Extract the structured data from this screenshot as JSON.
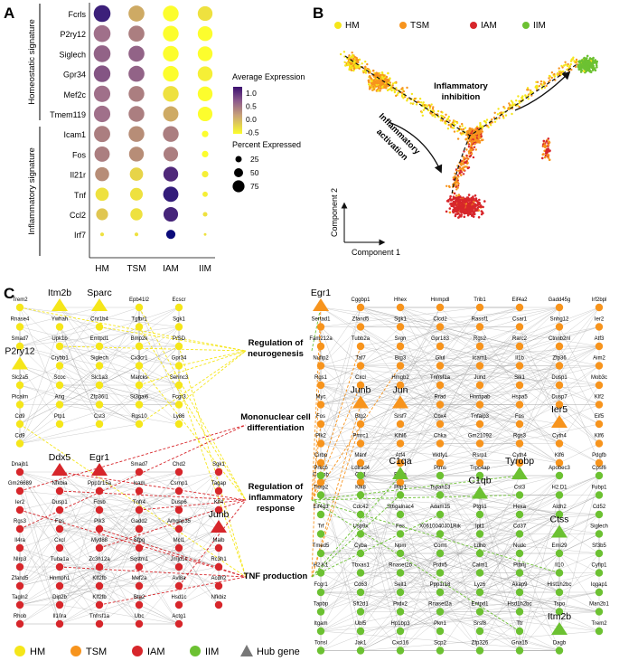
{
  "panel_labels": {
    "a": "A",
    "b": "B",
    "c": "C"
  },
  "colors": {
    "hm": "#f5e61a",
    "tsm": "#f7941d",
    "iam": "#d7262b",
    "iim": "#6cc132",
    "expr_high": "#3b0f70",
    "expr_mid": "#c7a079",
    "expr_low": "#fcfd2d"
  },
  "chart_data": {
    "type": "dotplot",
    "title": "",
    "columns": [
      "HM",
      "TSM",
      "IAM",
      "IIM"
    ],
    "genes": [
      "Fcrls",
      "P2ry12",
      "Siglech",
      "Gpr34",
      "Mef2c",
      "Tmem119",
      "Icam1",
      "Fos",
      "Il21r",
      "Tnf",
      "Ccl2",
      "Irf7"
    ],
    "groups": [
      {
        "label": "Homeostatic signature",
        "genes": [
          "Fcrls",
          "P2ry12",
          "Siglech",
          "Gpr34",
          "Mef2c",
          "Tmem119"
        ]
      },
      {
        "label": "Inflammatory signature",
        "genes": [
          "Icam1",
          "Fos",
          "Il21r",
          "Tnf",
          "Ccl2",
          "Irf7"
        ]
      }
    ],
    "avg_expression": [
      [
        1.3,
        0.1,
        -0.5,
        -0.3
      ],
      [
        0.5,
        0.4,
        -0.5,
        -0.5
      ],
      [
        0.6,
        0.6,
        -0.5,
        -0.5
      ],
      [
        0.7,
        0.6,
        -0.5,
        -0.4
      ],
      [
        0.5,
        0.4,
        -0.3,
        -0.5
      ],
      [
        0.5,
        0.4,
        0.1,
        -0.5
      ],
      [
        0.4,
        0.3,
        0.4,
        -0.5
      ],
      [
        0.4,
        0.3,
        0.4,
        -0.5
      ],
      [
        0.3,
        -0.2,
        1.1,
        -0.4
      ],
      [
        -0.3,
        -0.3,
        1.4,
        -0.4
      ],
      [
        -0.1,
        -0.3,
        1.2,
        -0.3
      ],
      [
        -0.3,
        -0.3,
        1.8,
        -0.3
      ]
    ],
    "pct_expressed": [
      [
        80,
        72,
        70,
        62
      ],
      [
        80,
        72,
        70,
        62
      ],
      [
        80,
        72,
        70,
        62
      ],
      [
        78,
        72,
        70,
        62
      ],
      [
        76,
        70,
        70,
        62
      ],
      [
        76,
        70,
        66,
        60
      ],
      [
        74,
        70,
        70,
        12
      ],
      [
        66,
        62,
        60,
        12
      ],
      [
        56,
        50,
        62,
        12
      ],
      [
        50,
        46,
        66,
        8
      ],
      [
        40,
        42,
        60,
        6
      ],
      [
        4,
        4,
        24,
        2
      ]
    ],
    "color_scale": {
      "title": "Average Expression",
      "ticks": [
        "1.0",
        "0.5",
        "0.0",
        "-0.5"
      ]
    },
    "size_scale": {
      "title": "Percent Expressed",
      "ticks": [
        "25",
        "50",
        "75"
      ]
    }
  },
  "panel_b": {
    "legend": [
      "HM",
      "TSM",
      "IAM",
      "IIM"
    ],
    "xlabel": "Component 1",
    "ylabel": "Component 2",
    "arrow_inhibition": [
      "Inflammatory",
      "inhibition"
    ],
    "arrow_activation": [
      "Inflammatory",
      "activation"
    ]
  },
  "panel_c": {
    "go_terms": [
      [
        "Regulation of",
        "neurogenesis"
      ],
      [
        "Mononuclear cell",
        "differentiation"
      ],
      [
        "Regulation of",
        "inflammatory",
        "response"
      ],
      [
        "TNF production"
      ]
    ],
    "legend": [
      "HM",
      "TSM",
      "IAM",
      "IIM",
      "Hub gene"
    ],
    "left_yellow": [
      [
        "Trem2",
        "Itm2b*",
        "Sparc*",
        "Epb41l2",
        "Ecscr"
      ],
      [
        "Rnase4",
        "Ywhah",
        "Cnr1b4",
        "Tgfbr1",
        "Sgk1"
      ],
      [
        "Smad7",
        "Upk1b",
        "Emtpd1",
        "Bmp2k",
        "P/SD"
      ],
      [
        "P2ry12*",
        "Crybb1",
        "Siglech",
        "Cx3cr1",
        "Gpr34"
      ],
      [
        "Slc2a5",
        "Scoc",
        "Slc1a3",
        "Marcks",
        "Serinc3"
      ],
      [
        "Picalm",
        "Ang",
        "Zfp36l1",
        "St3gal6",
        "Fcgr3"
      ],
      [
        "Cd9",
        "Ptp1",
        "Cst3",
        "Rgs10",
        "Ly86"
      ],
      [
        "Cd9"
      ]
    ],
    "left_red": [
      [
        "Dnajb1",
        "Ddx5*",
        "Egr1*",
        "Smad7",
        "Chd2",
        "Sgk1"
      ],
      [
        "Gm26689",
        "Nfkbia",
        "Ppp1r15a",
        "Icam",
        "Csrnp1",
        "Tagap"
      ],
      [
        "Ier2",
        "Dusp1",
        "Fosb",
        "Tnfr4",
        "Dusp6",
        "Klf4"
      ],
      [
        "Rgs3",
        "Fos",
        "Pik3",
        "Gadd2",
        "Arhgap35",
        "Junb*"
      ],
      [
        "Il4ra",
        "Cxcl",
        "Myd88",
        "Sfpq",
        "Mcl1",
        "Malb"
      ],
      [
        "Nlrp3",
        "Tuba1a",
        "Zc3h12a",
        "Sqstm1",
        "Jmjd1c",
        "Rc3h1"
      ],
      [
        "Zfand5",
        "Hnmph1",
        "Klf2fb",
        "Mef2a",
        "Avl8a",
        "Acdh2"
      ],
      [
        "Tagln2",
        "Dip2b",
        "Klf2fb",
        "Btg2",
        "Hsd1c",
        "Nfkbiz"
      ],
      [
        "Rhob",
        "Il10ra",
        "Tnfrsf1a",
        "Ubc",
        "Actg1"
      ]
    ],
    "right_orange": [
      [
        "Egr1*",
        "Cggbp1",
        "Hhex",
        "Hnmpdl",
        "Trib1",
        "Eif4a2",
        "Gadd45g",
        "Irf2bpl"
      ],
      [
        "Sertad1",
        "Zfand5",
        "Sgk1",
        "Clcd2",
        "Rassf1",
        "Csar1",
        "Snhg12",
        "Ier2"
      ],
      [
        "Fam212a",
        "Tubb2a",
        "Srgn",
        "Gpr183",
        "Rgs2",
        "Rarc2",
        "Ctnnb2nl",
        "Atf3"
      ],
      [
        "Nufip2",
        "Taf7",
        "Btg3",
        "Glul",
        "Icam1",
        "Il1b",
        "Zfp36",
        "Aim2"
      ],
      [
        "Rgs1",
        "Cxcl",
        "Hmgb2",
        "Tnfrsf1a",
        "Jund",
        "Sik1",
        "Dusp1",
        "Mob3c"
      ],
      [
        "Myc",
        "Junb*",
        "Jun*",
        "Rrad",
        "Hnrnpab",
        "Hspa5",
        "Dusp7",
        "Klf2"
      ],
      [
        "Fos",
        "Btg2",
        "Srsf7",
        "Cbx4",
        "Tnfaip3",
        "Fos",
        "Ier5*",
        "Eif5"
      ],
      [
        "Plk2",
        "Pmrc1",
        "Klhl6",
        "Chka",
        "Gm21092",
        "Rgs3",
        "Cyth4",
        "Klf6"
      ],
      [
        "Cirbp",
        "Manf",
        "Atf4",
        "Wdfy1",
        "Rsrp1",
        "Cyth4",
        "Klf6",
        "Pdgfb"
      ],
      [
        "Cebpb",
        "Clk1",
        "Eif1a"
      ]
    ],
    "right_green": [
      [
        "Prkcb",
        "Ldlrad4",
        "C1qa*",
        "Ptms",
        "Trpc4ap",
        "Tyrobp*",
        "Apobec3",
        "Cpsf6"
      ],
      [
        "Timp2",
        "Klk8",
        "Pltp1",
        "Tspan13",
        "C1qb*",
        "Cst3",
        "H2.D1",
        "Fubp1"
      ],
      [
        "Eif4g3",
        "Cdc42",
        "St6galnac4",
        "Adam15",
        "Ptgs1",
        "Hexa",
        "Aldh2",
        "Cd52"
      ],
      [
        "Trf",
        "Usp9x",
        "Fes",
        "X0610040J01Rik",
        "Ipt1",
        "Cd37",
        "Ctss*",
        "Siglech"
      ],
      [
        "Tmed5",
        "Cyba",
        "Npm",
        "Comt",
        "Ldhb",
        "Nudc",
        "Emi29",
        "Sf3b5"
      ],
      [
        "H2.K1",
        "Tbxas1",
        "Rnaset2b",
        "Prdx5",
        "Calm1",
        "Ptbnj",
        "Il10",
        "Cyfip1"
      ],
      [
        "Fcgr1",
        "Cd63",
        "Selt1",
        "Ppp1r18",
        "Lyz6",
        "Akap9",
        "Hist1h2bc",
        "Iqgap1"
      ],
      [
        "Tapbp",
        "Sft2d1",
        "Prdx2",
        "Rnaset2a",
        "Entpd1",
        "Hsd1h2bc",
        "Tspo",
        "Man2b1"
      ],
      [
        "Itgam",
        "Ubl5",
        "Hp1bp3",
        "Pkn1",
        "Srsf8",
        "Ttr",
        "Itm2b*",
        "Trem2"
      ],
      [
        "Tonsl",
        "Jak1",
        "Cxcl16",
        "Scp2",
        "Zfp326",
        "Gna15",
        "Dagb"
      ]
    ]
  }
}
